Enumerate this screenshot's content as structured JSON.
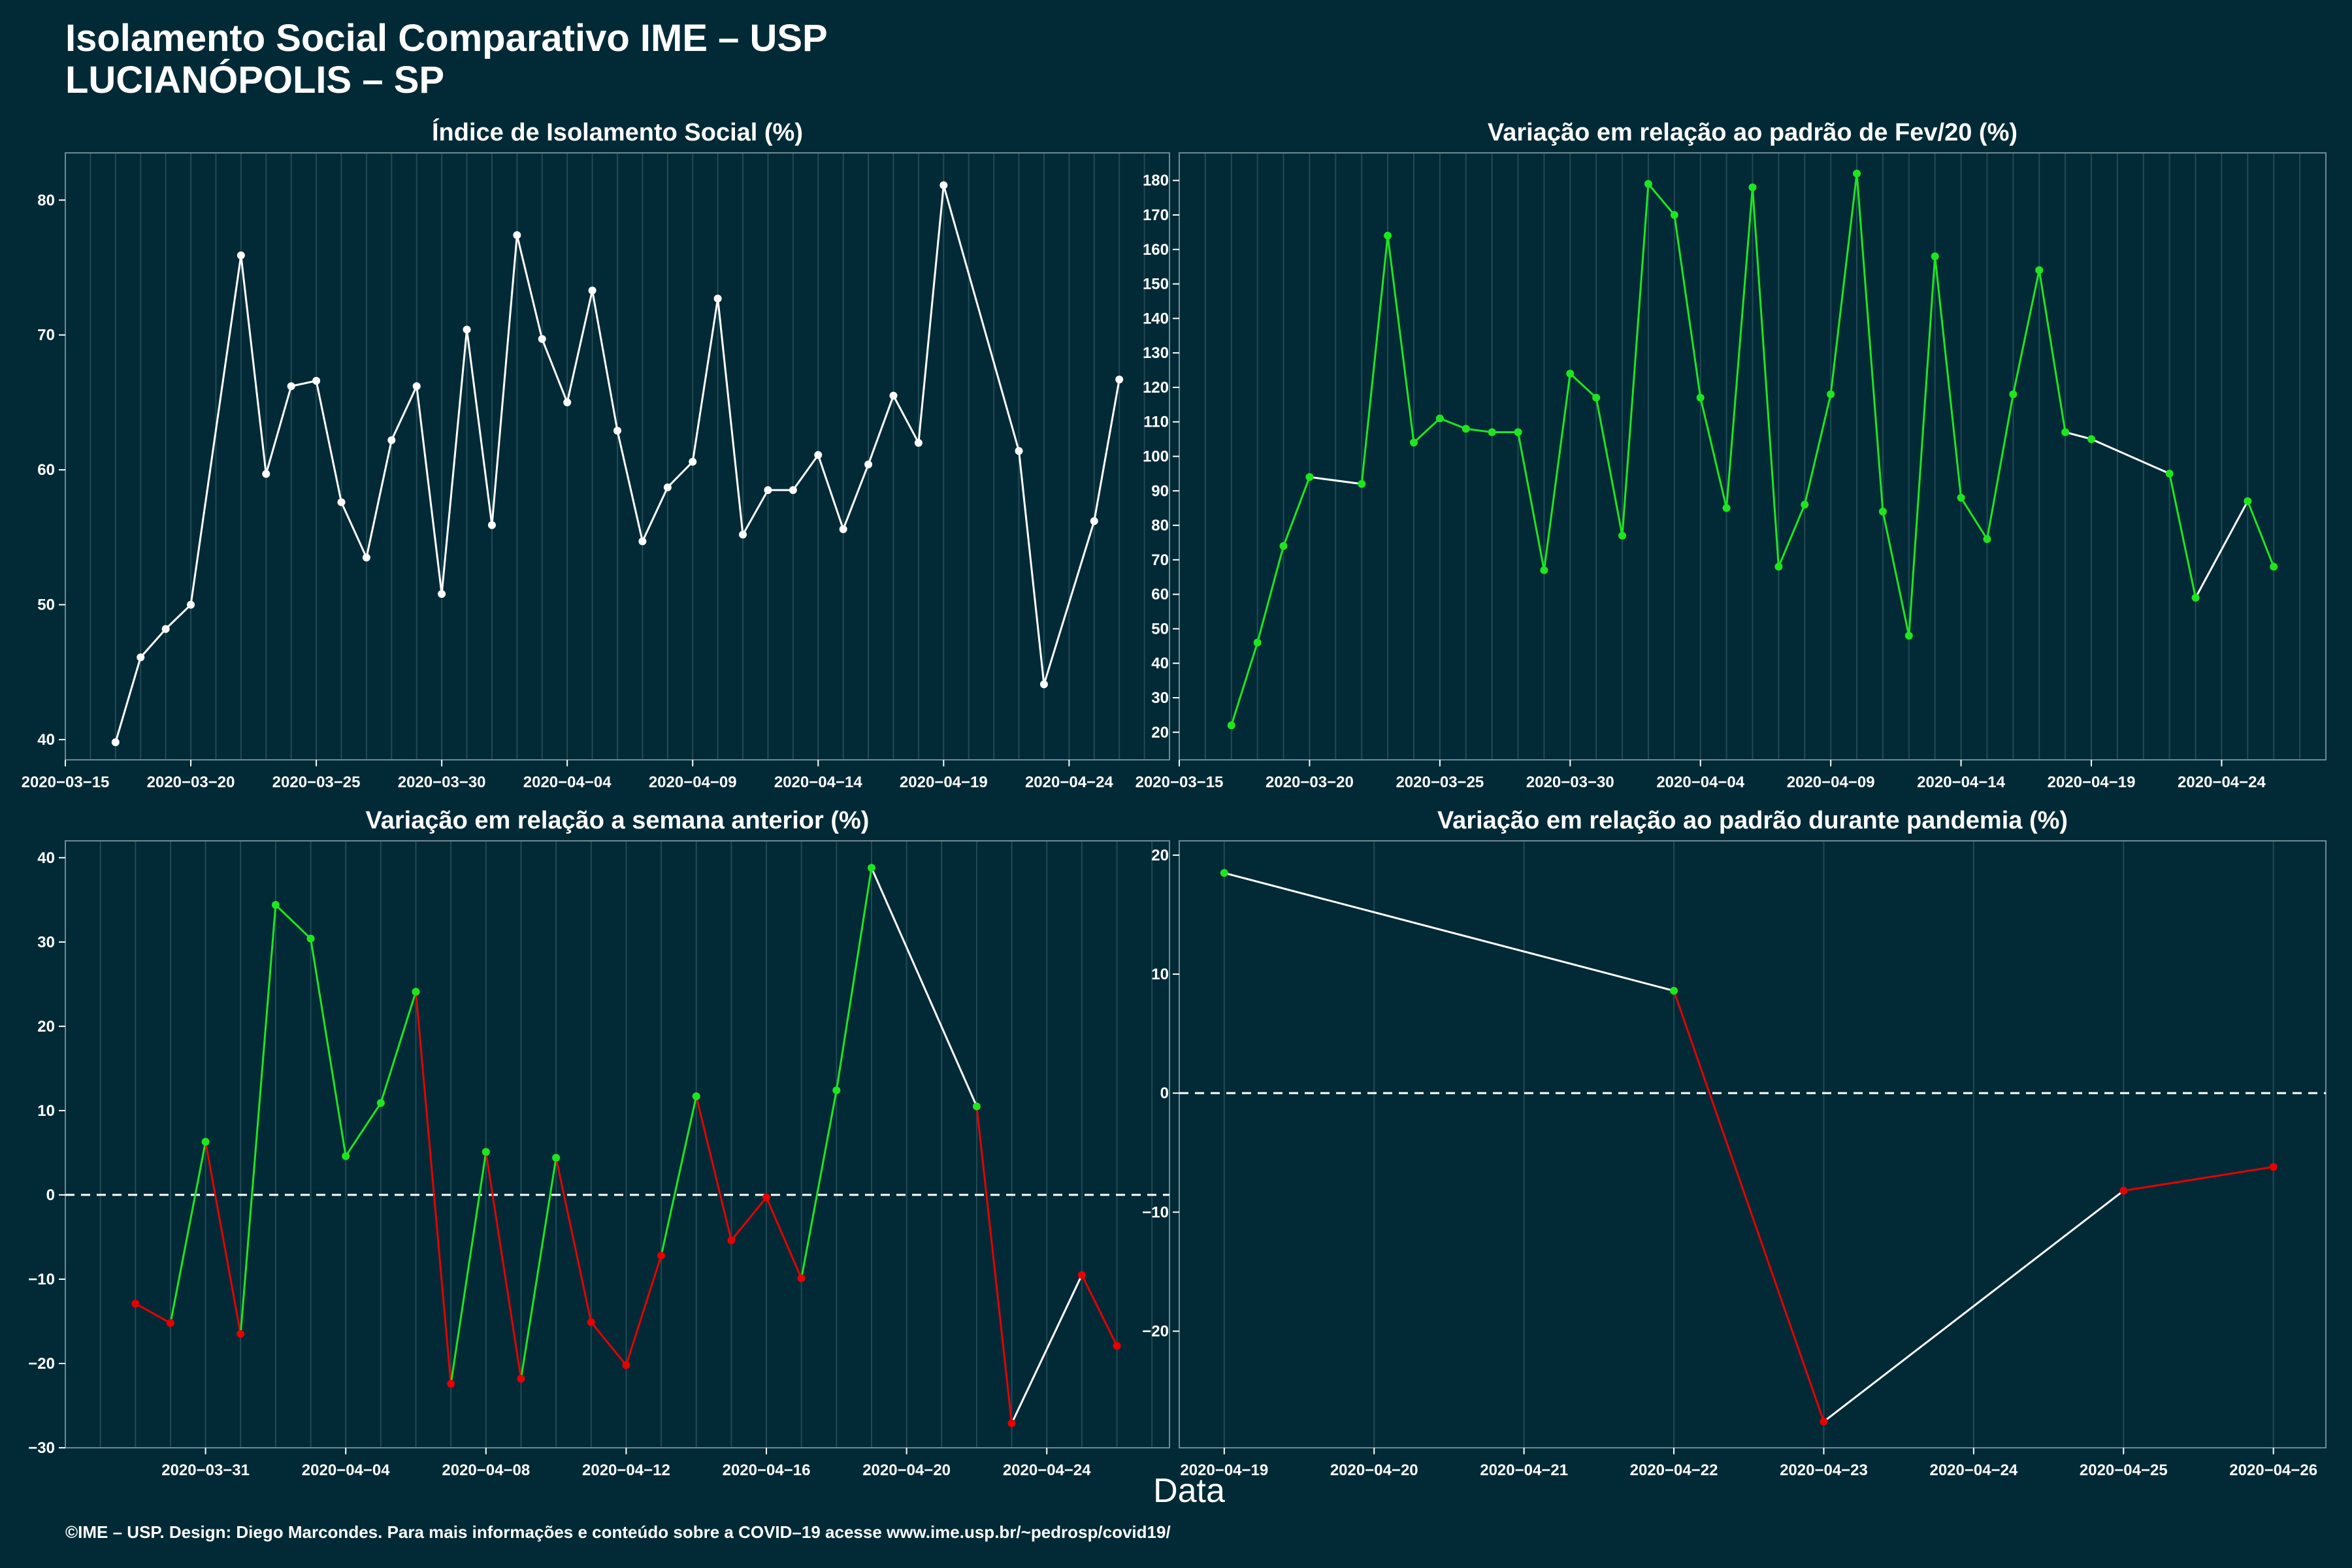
{
  "header": {
    "title_line1": "Isolamento Social Comparativo IME – USP",
    "title_line2": "LUCIANÓPOLIS – SP"
  },
  "x_caption": "Data",
  "footer": "©IME – USP. Design: Diego Marcondes. Para mais informações e conteúdo sobre a COVID–19 acesse www.ime.usp.br/~pedrosp/covid19/",
  "colors": {
    "background": "#012a36",
    "white": "#ffffff",
    "green": "#1ee61e",
    "red": "#e60000",
    "grid": "#234a55"
  },
  "chart_data": [
    {
      "type": "line",
      "title": "Índice de Isolamento Social (%)",
      "xlim": [
        "2020-03-15",
        "2020-04-28"
      ],
      "ylim": [
        38.5,
        83.5
      ],
      "xticks": [
        "2020-03-15",
        "2020-03-20",
        "2020-03-25",
        "2020-03-30",
        "2020-04-04",
        "2020-04-09",
        "2020-04-14",
        "2020-04-19",
        "2020-04-24"
      ],
      "yticks": [
        40,
        50,
        60,
        70,
        80
      ],
      "series": [
        {
          "x": [
            "2020-03-17",
            "2020-03-18",
            "2020-03-19",
            "2020-03-20",
            "2020-03-22",
            "2020-03-23",
            "2020-03-24",
            "2020-03-25",
            "2020-03-26",
            "2020-03-27",
            "2020-03-28",
            "2020-03-29",
            "2020-03-30",
            "2020-03-31",
            "2020-04-01",
            "2020-04-02",
            "2020-04-03",
            "2020-04-04",
            "2020-04-05",
            "2020-04-06",
            "2020-04-07",
            "2020-04-08",
            "2020-04-09",
            "2020-04-10",
            "2020-04-11",
            "2020-04-12",
            "2020-04-13",
            "2020-04-14",
            "2020-04-15",
            "2020-04-16",
            "2020-04-17",
            "2020-04-18",
            "2020-04-19",
            "2020-04-22",
            "2020-04-23",
            "2020-04-25",
            "2020-04-26"
          ],
          "y": [
            39.8,
            46.1,
            48.2,
            50.0,
            75.9,
            59.7,
            66.2,
            66.6,
            57.6,
            53.5,
            62.2,
            66.2,
            50.8,
            70.4,
            55.9,
            77.4,
            69.7,
            65.0,
            73.3,
            62.9,
            54.7,
            58.7,
            60.6,
            72.7,
            55.2,
            58.5,
            58.5,
            61.1,
            55.6,
            60.4,
            65.5,
            62.0,
            81.1,
            61.4,
            44.1,
            56.2,
            66.7
          ],
          "segment_colors": [
            "white"
          ]
        }
      ]
    },
    {
      "type": "line",
      "title": "Variação em relação ao padrão de Fev/20 (%)",
      "xlim": [
        "2020-03-15",
        "2020-04-28"
      ],
      "ylim": [
        12,
        188
      ],
      "xticks": [
        "2020-03-15",
        "2020-03-20",
        "2020-03-25",
        "2020-03-30",
        "2020-04-04",
        "2020-04-09",
        "2020-04-14",
        "2020-04-19",
        "2020-04-24"
      ],
      "yticks": [
        20,
        30,
        40,
        50,
        60,
        70,
        80,
        90,
        100,
        110,
        120,
        130,
        140,
        150,
        160,
        170,
        180
      ],
      "series": [
        {
          "x": [
            "2020-03-17",
            "2020-03-18",
            "2020-03-19",
            "2020-03-20",
            "2020-03-22",
            "2020-03-23",
            "2020-03-24",
            "2020-03-25",
            "2020-03-26",
            "2020-03-27",
            "2020-03-28",
            "2020-03-29",
            "2020-03-30",
            "2020-03-31",
            "2020-04-01",
            "2020-04-02",
            "2020-04-03",
            "2020-04-04",
            "2020-04-05",
            "2020-04-06",
            "2020-04-07",
            "2020-04-08",
            "2020-04-09",
            "2020-04-10",
            "2020-04-11",
            "2020-04-12",
            "2020-04-13",
            "2020-04-14",
            "2020-04-15",
            "2020-04-16",
            "2020-04-17",
            "2020-04-18",
            "2020-04-19",
            "2020-04-22",
            "2020-04-23",
            "2020-04-25",
            "2020-04-26"
          ],
          "y": [
            22,
            46,
            74,
            94,
            92,
            164,
            104,
            111,
            108,
            107,
            107,
            67,
            124,
            117,
            77,
            179,
            170,
            117,
            85,
            178,
            68,
            86,
            118,
            182,
            84,
            48,
            158,
            88,
            76,
            118,
            154,
            107,
            105,
            95,
            59,
            87,
            68
          ],
          "point_color": "green",
          "segment_colors": [
            "green",
            "green",
            "green",
            "white",
            "green",
            "green",
            "green",
            "green",
            "green",
            "green",
            "green",
            "green",
            "green",
            "green",
            "green",
            "green",
            "green",
            "green",
            "green",
            "green",
            "green",
            "green",
            "green",
            "green",
            "green",
            "green",
            "green",
            "green",
            "green",
            "green",
            "green",
            "white",
            "white",
            "green",
            "white",
            "green"
          ]
        }
      ]
    },
    {
      "type": "line",
      "title": "Variação em relação a semana anterior (%)",
      "xlim": [
        "2020-03-27.0",
        "2020-04-27.5"
      ],
      "ylim": [
        -30,
        42
      ],
      "xticks": [
        "2020-03-31",
        "2020-04-04",
        "2020-04-08",
        "2020-04-12",
        "2020-04-16",
        "2020-04-20",
        "2020-04-24"
      ],
      "yticks": [
        -30,
        -20,
        -10,
        0,
        10,
        20,
        30,
        40
      ],
      "zero_line": true,
      "series": [
        {
          "x": [
            "2020-03-29",
            "2020-03-30",
            "2020-03-31",
            "2020-04-01",
            "2020-04-02",
            "2020-04-03",
            "2020-04-04",
            "2020-04-05",
            "2020-04-06",
            "2020-04-07",
            "2020-04-08",
            "2020-04-09",
            "2020-04-10",
            "2020-04-11",
            "2020-04-12",
            "2020-04-13",
            "2020-04-14",
            "2020-04-15",
            "2020-04-16",
            "2020-04-17",
            "2020-04-18",
            "2020-04-19",
            "2020-04-22",
            "2020-04-23",
            "2020-04-25",
            "2020-04-26"
          ],
          "y": [
            -12.9,
            -15.2,
            6.3,
            -16.5,
            34.4,
            30.4,
            4.6,
            10.9,
            24.1,
            -22.4,
            5.1,
            -21.8,
            4.4,
            -15.1,
            -20.2,
            -7.2,
            11.7,
            -5.4,
            -0.3,
            -9.9,
            12.4,
            38.8,
            10.5,
            -27.1,
            -9.5,
            -17.9
          ],
          "point_colors": [
            "red",
            "red",
            "green",
            "red",
            "green",
            "green",
            "green",
            "green",
            "green",
            "red",
            "green",
            "red",
            "green",
            "red",
            "red",
            "red",
            "green",
            "red",
            "red",
            "red",
            "green",
            "green",
            "green",
            "red",
            "red",
            "red"
          ],
          "segment_colors": [
            "red",
            "green",
            "red",
            "green",
            "green",
            "green",
            "green",
            "green",
            "red",
            "green",
            "red",
            "green",
            "red",
            "red",
            "red",
            "green",
            "red",
            "red",
            "red",
            "green",
            "green",
            "white",
            "red",
            "white",
            "red"
          ]
        }
      ]
    },
    {
      "type": "line",
      "title": "Variação em relação ao padrão durante pandemia (%)",
      "xlim": [
        "2020-04-18.7",
        "2020-04-26.35"
      ],
      "ylim": [
        -29.8,
        21.2
      ],
      "xticks": [
        "2020-04-19",
        "2020-04-20",
        "2020-04-21",
        "2020-04-22",
        "2020-04-23",
        "2020-04-24",
        "2020-04-25",
        "2020-04-26"
      ],
      "yticks": [
        -20,
        -10,
        0,
        10,
        20
      ],
      "zero_line": true,
      "series": [
        {
          "x": [
            "2020-04-19",
            "2020-04-22",
            "2020-04-23",
            "2020-04-25",
            "2020-04-26"
          ],
          "y": [
            18.5,
            8.6,
            -27.6,
            -8.2,
            -6.2
          ],
          "point_colors": [
            "green",
            "green",
            "red",
            "red",
            "red"
          ],
          "segment_colors": [
            "white",
            "red",
            "white",
            "red"
          ]
        }
      ]
    }
  ]
}
